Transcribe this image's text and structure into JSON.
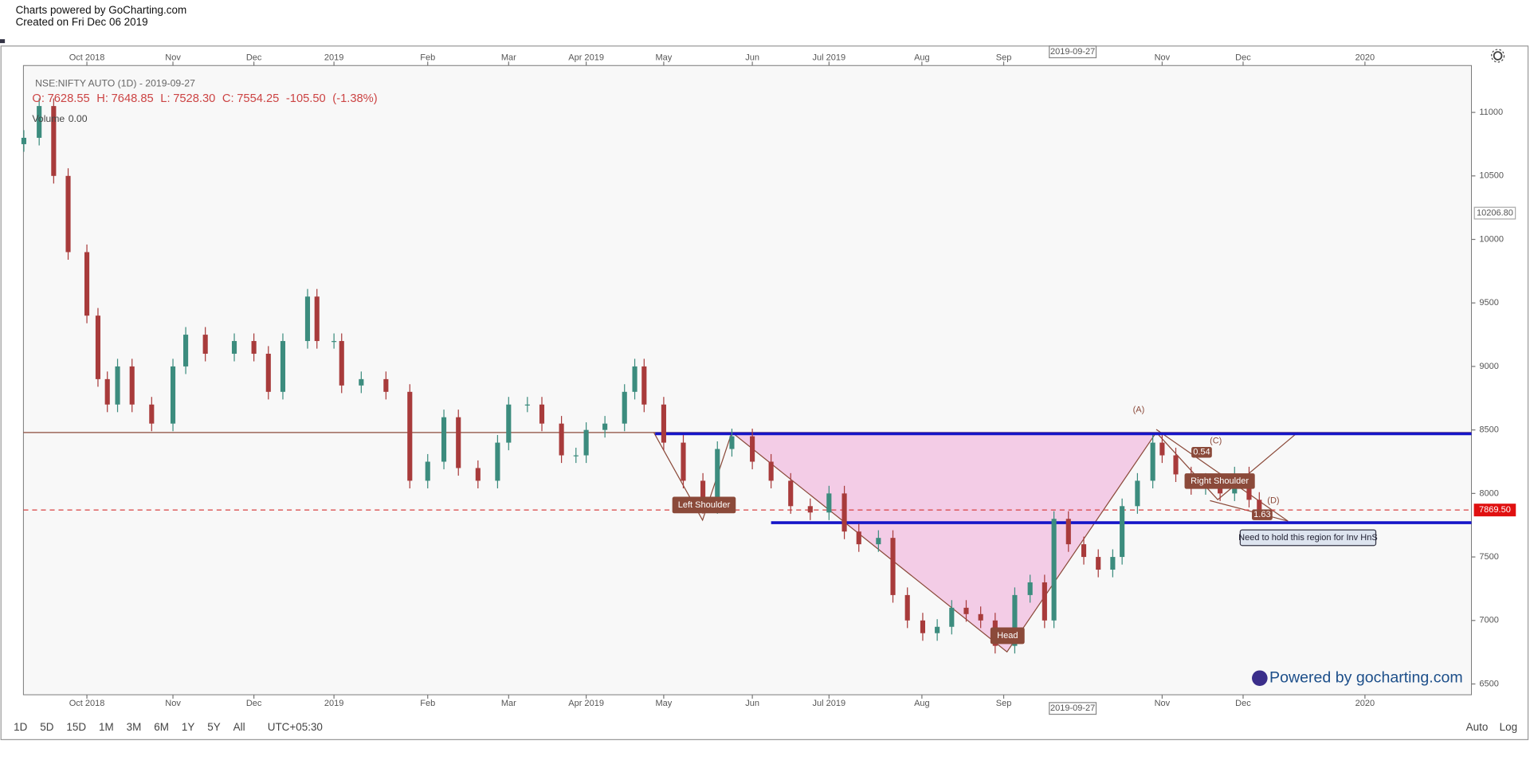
{
  "header": {
    "line1": "Charts powered by GoCharting.com",
    "line2": "Created on Fri Dec 06 2019"
  },
  "chart_data": {
    "type": "candlestick",
    "title": "NSE:NIFTY AUTO (1D) - 2019-09-27",
    "ohlc_text": [
      "O:",
      "7628.55",
      "H:",
      "7648.85",
      "L:",
      "7528.30",
      "C:",
      "7554.25",
      "-105.50",
      "(-1.38%)"
    ],
    "volume_text": [
      "Volume",
      "0.00"
    ],
    "up_color": "#3c8c7e",
    "down_color": "#a83b3b",
    "x": [
      -0.74,
      -0.56,
      -0.39,
      -0.22,
      0,
      0.13,
      0.24,
      0.36,
      0.53,
      0.76,
      1.01,
      1.16,
      1.39,
      1.73,
      1.96,
      2.13,
      2.3,
      2.59,
      2.7,
      2.9,
      2.99,
      3.22,
      3.51,
      3.79,
      4,
      4.19,
      4.36,
      4.59,
      4.82,
      4.95,
      5.17,
      5.34,
      5.57,
      5.74,
      5.86,
      6.08,
      6.31,
      6.43,
      6.54,
      6.77,
      7,
      7.23,
      7.4,
      7.57,
      7.81,
      8.03,
      8.26,
      8.49,
      8.71,
      8.89,
      9.06,
      9.29,
      9.46,
      9.63,
      9.81,
      9.98,
      10.15,
      10.32,
      10.49,
      10.66,
      10.89,
      11.07,
      11.24,
      11.35,
      11.52,
      11.7,
      11.87,
      12.04,
      12.15,
      12.33,
      12.51,
      12.62,
      12.78,
      12.96,
      13.13,
      13.3,
      13.47,
      13.64,
      13.76
    ],
    "open": [
      10750,
      10800,
      11050,
      10500,
      9900,
      9400,
      8900,
      8700,
      9000,
      8700,
      8550,
      9000,
      9250,
      9100,
      9200,
      9100,
      8800,
      9200,
      9550,
      9200,
      9200,
      8850,
      8900,
      8800,
      8100,
      8250,
      8600,
      8200,
      8100,
      8400,
      8700,
      8700,
      8550,
      8300,
      8300,
      8500,
      8550,
      8800,
      9000,
      8700,
      8400,
      8100,
      7900,
      8350,
      8450,
      8250,
      8100,
      7900,
      7850,
      8000,
      7700,
      7600,
      7650,
      7200,
      7000,
      6900,
      6950,
      7100,
      7050,
      7000,
      6800,
      7200,
      7300,
      7000,
      7800,
      7600,
      7500,
      7400,
      7500,
      7900,
      8100,
      8400,
      8300,
      8150,
      8050,
      8100,
      8000,
      8150,
      7950
    ],
    "high": [
      10860,
      11110,
      11110,
      10560,
      9960,
      9460,
      8960,
      9060,
      9060,
      8760,
      9060,
      9310,
      9310,
      9260,
      9260,
      9160,
      9260,
      9610,
      9610,
      9260,
      9260,
      8960,
      8960,
      8860,
      8310,
      8660,
      8660,
      8260,
      8460,
      8760,
      8760,
      8760,
      8610,
      8360,
      8560,
      8610,
      8860,
      9060,
      9060,
      8760,
      8460,
      8160,
      8410,
      8510,
      8510,
      8310,
      8160,
      7960,
      8060,
      8060,
      7760,
      7710,
      7710,
      7260,
      7060,
      7010,
      7160,
      7160,
      7110,
      7060,
      7260,
      7360,
      7360,
      7860,
      7860,
      7660,
      7560,
      7560,
      7960,
      8160,
      8460,
      8460,
      8360,
      8210,
      8160,
      8160,
      8210,
      8210,
      8010
    ],
    "low": [
      10690,
      10740,
      10440,
      9840,
      9340,
      8840,
      8640,
      8640,
      8640,
      8490,
      8490,
      8940,
      9040,
      9040,
      9040,
      8740,
      8740,
      9140,
      9140,
      9140,
      8790,
      8790,
      8740,
      8040,
      8040,
      8190,
      8140,
      8040,
      8040,
      8340,
      8640,
      8490,
      8240,
      8240,
      8240,
      8440,
      8490,
      8740,
      8640,
      8340,
      8040,
      7840,
      7840,
      8290,
      8190,
      8040,
      7840,
      7790,
      7790,
      7640,
      7540,
      7540,
      7140,
      6940,
      6840,
      6840,
      6890,
      6990,
      6940,
      6740,
      6740,
      7140,
      6940,
      6940,
      7540,
      7440,
      7340,
      7340,
      7440,
      7840,
      8040,
      8240,
      8090,
      7990,
      7990,
      7940,
      7940,
      7890,
      7790
    ],
    "close": [
      10800,
      11050,
      10500,
      9900,
      9400,
      8900,
      8700,
      9000,
      8700,
      8550,
      9000,
      9250,
      9100,
      9200,
      9100,
      8800,
      9200,
      9550,
      9200,
      9200,
      8850,
      8900,
      8800,
      8100,
      8250,
      8600,
      8200,
      8100,
      8400,
      8700,
      8700,
      8550,
      8300,
      8300,
      8500,
      8550,
      8800,
      9000,
      8700,
      8400,
      8100,
      7900,
      8350,
      8450,
      8250,
      8100,
      7900,
      7850,
      8000,
      7700,
      7600,
      7650,
      7200,
      7000,
      6900,
      6950,
      7100,
      7050,
      7000,
      6800,
      7200,
      7300,
      7000,
      7800,
      7600,
      7500,
      7400,
      7500,
      7900,
      8100,
      8400,
      8300,
      8150,
      8050,
      8100,
      8000,
      8150,
      7950,
      7850
    ],
    "xlim": [
      -0.745,
      16.25
    ],
    "xticks": [
      {
        "value": 0,
        "label": "Oct 2018"
      },
      {
        "value": 1.01,
        "label": "Nov"
      },
      {
        "value": 1.96,
        "label": "Dec"
      },
      {
        "value": 2.9,
        "label": "2019"
      },
      {
        "value": 4,
        "label": "Feb"
      },
      {
        "value": 4.95,
        "label": "Mar"
      },
      {
        "value": 5.86,
        "label": "Apr 2019"
      },
      {
        "value": 6.77,
        "label": "May"
      },
      {
        "value": 7.81,
        "label": "Jun"
      },
      {
        "value": 8.71,
        "label": "Jul 2019"
      },
      {
        "value": 9.8,
        "label": "Aug"
      },
      {
        "value": 10.76,
        "label": "Sep"
      },
      {
        "value": 12.62,
        "label": "Nov"
      },
      {
        "value": 13.57,
        "label": "Dec"
      },
      {
        "value": 15,
        "label": "2020"
      }
    ],
    "crosshair_x": {
      "value": 11.57,
      "label": "2019-09-27"
    },
    "ylim": [
      6415,
      11369
    ],
    "yticks": [
      6500,
      7000,
      7500,
      8000,
      8500,
      9000,
      9500,
      10000,
      10500,
      11000
    ],
    "price_labels": [
      {
        "value": 10206.8,
        "label": "10206.80",
        "color": "#ffffff"
      },
      {
        "value": 7869.5,
        "label": "7869.50",
        "color": "#e01010"
      }
    ],
    "hlines": [
      {
        "value": 8480,
        "color": "#8b4a3a",
        "style": "solid",
        "width": 1,
        "from": -0.745
      },
      {
        "value": 8470,
        "color": "#1515c8",
        "style": "solid",
        "width": 3,
        "from": 6.67
      },
      {
        "value": 7770,
        "color": "#1515c8",
        "style": "solid",
        "width": 3,
        "from": 8.03
      },
      {
        "value": 7869.5,
        "color": "#d84040",
        "style": "dashed",
        "width": 1,
        "from": -0.745
      }
    ],
    "annotations": {
      "left_shoulder": "Left Shoulder",
      "head": "Head",
      "right_shoulder": "Right Shoulder",
      "a": "(A)",
      "c": "(C)",
      "d": "(D)",
      "r1": "0.54",
      "r2": "1.63",
      "note": "Need to hold this region for Inv HnS"
    },
    "watermark": "Powered by gocharting.com"
  },
  "toolbar": {
    "ranges": [
      "1D",
      "5D",
      "15D",
      "1M",
      "3M",
      "6M",
      "1Y",
      "5Y",
      "All"
    ],
    "timezone": "UTC+05:30",
    "auto": "Auto",
    "log": "Log"
  }
}
